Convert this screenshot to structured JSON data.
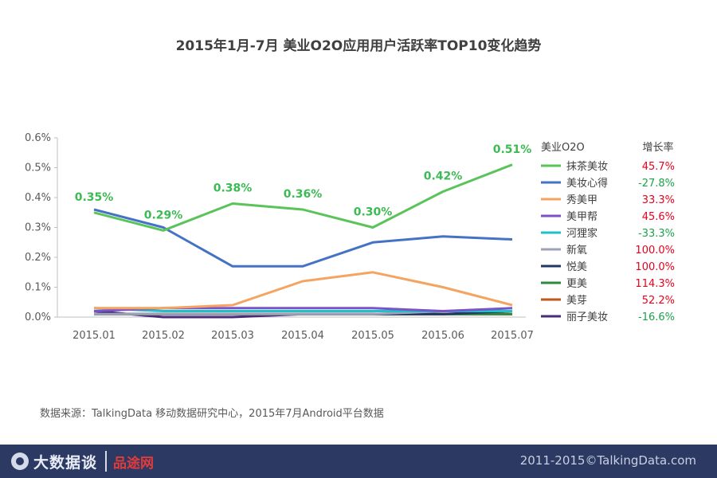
{
  "title": "2015年1月-7月 美业O2O应用用户活跃率TOP10变化趋势",
  "source": "数据来源：TalkingData 移动数据研究中心，2015年7月Android平台数据",
  "footer": {
    "logo_text": "大数据谈",
    "brand_text": "品途网",
    "copyright": "2011-2015©TalkingData.com"
  },
  "chart_data": {
    "type": "line",
    "title": "2015年1月-7月 美业O2O应用用户活跃率TOP10变化趋势",
    "xlabel": "",
    "ylabel": "",
    "ylim": [
      0,
      0.6
    ],
    "yticks": [
      "0.0%",
      "0.1%",
      "0.2%",
      "0.3%",
      "0.4%",
      "0.5%",
      "0.6%"
    ],
    "ytick_values": [
      0,
      0.1,
      0.2,
      0.3,
      0.4,
      0.5,
      0.6
    ],
    "categories": [
      "2015.01",
      "2015.02",
      "2015.03",
      "2015.04",
      "2015.05",
      "2015.06",
      "2015.07"
    ],
    "legend_header": "美业O2O",
    "growth_header": "增长率",
    "series": [
      {
        "name": "抹茶美妆",
        "color": "#5ac35a",
        "growth": "45.7%",
        "growth_dir": "pos",
        "values": [
          0.35,
          0.29,
          0.38,
          0.36,
          0.3,
          0.42,
          0.51
        ],
        "labels": [
          "0.35%",
          "0.29%",
          "0.38%",
          "0.36%",
          "0.30%",
          "0.42%",
          "0.51%"
        ]
      },
      {
        "name": "美妆心得",
        "color": "#4472c4",
        "growth": "-27.8%",
        "growth_dir": "neg",
        "values": [
          0.36,
          0.3,
          0.17,
          0.17,
          0.25,
          0.27,
          0.26
        ]
      },
      {
        "name": "秀美甲",
        "color": "#f4a460",
        "growth": "33.3%",
        "growth_dir": "pos",
        "values": [
          0.03,
          0.03,
          0.04,
          0.12,
          0.15,
          0.1,
          0.04
        ]
      },
      {
        "name": "美甲帮",
        "color": "#7b52c7",
        "growth": "45.6%",
        "growth_dir": "pos",
        "values": [
          0.02,
          0.03,
          0.03,
          0.03,
          0.03,
          0.02,
          0.03
        ]
      },
      {
        "name": "河狸家",
        "color": "#20c0c8",
        "growth": "-33.3%",
        "growth_dir": "neg",
        "values": [
          0.03,
          0.02,
          0.02,
          0.02,
          0.02,
          0.02,
          0.02
        ]
      },
      {
        "name": "新氧",
        "color": "#9ea2b8",
        "growth": "100.0%",
        "growth_dir": "pos",
        "values": [
          0.01,
          0.01,
          0.01,
          0.01,
          0.01,
          0.02,
          0.02
        ]
      },
      {
        "name": "悦美",
        "color": "#1f3864",
        "growth": "100.0%",
        "growth_dir": "pos",
        "values": [
          0.01,
          0.01,
          0.01,
          0.01,
          0.01,
          0.01,
          0.02
        ]
      },
      {
        "name": "更美",
        "color": "#2e8b3e",
        "growth": "114.3%",
        "growth_dir": "pos",
        "values": [
          0.01,
          0.01,
          0.01,
          0.01,
          0.01,
          0.01,
          0.01
        ]
      },
      {
        "name": "美芽",
        "color": "#c0581b",
        "growth": "52.2%",
        "growth_dir": "pos",
        "values": [
          0.01,
          0.01,
          0.01,
          0.01,
          0.01,
          0.01,
          0.01
        ]
      },
      {
        "name": "丽子美妆",
        "color": "#4b2a7a",
        "growth": "-16.6%",
        "growth_dir": "neg",
        "values": [
          0.02,
          0.0,
          0.0,
          0.01,
          0.01,
          0.01,
          0.01
        ]
      }
    ]
  }
}
